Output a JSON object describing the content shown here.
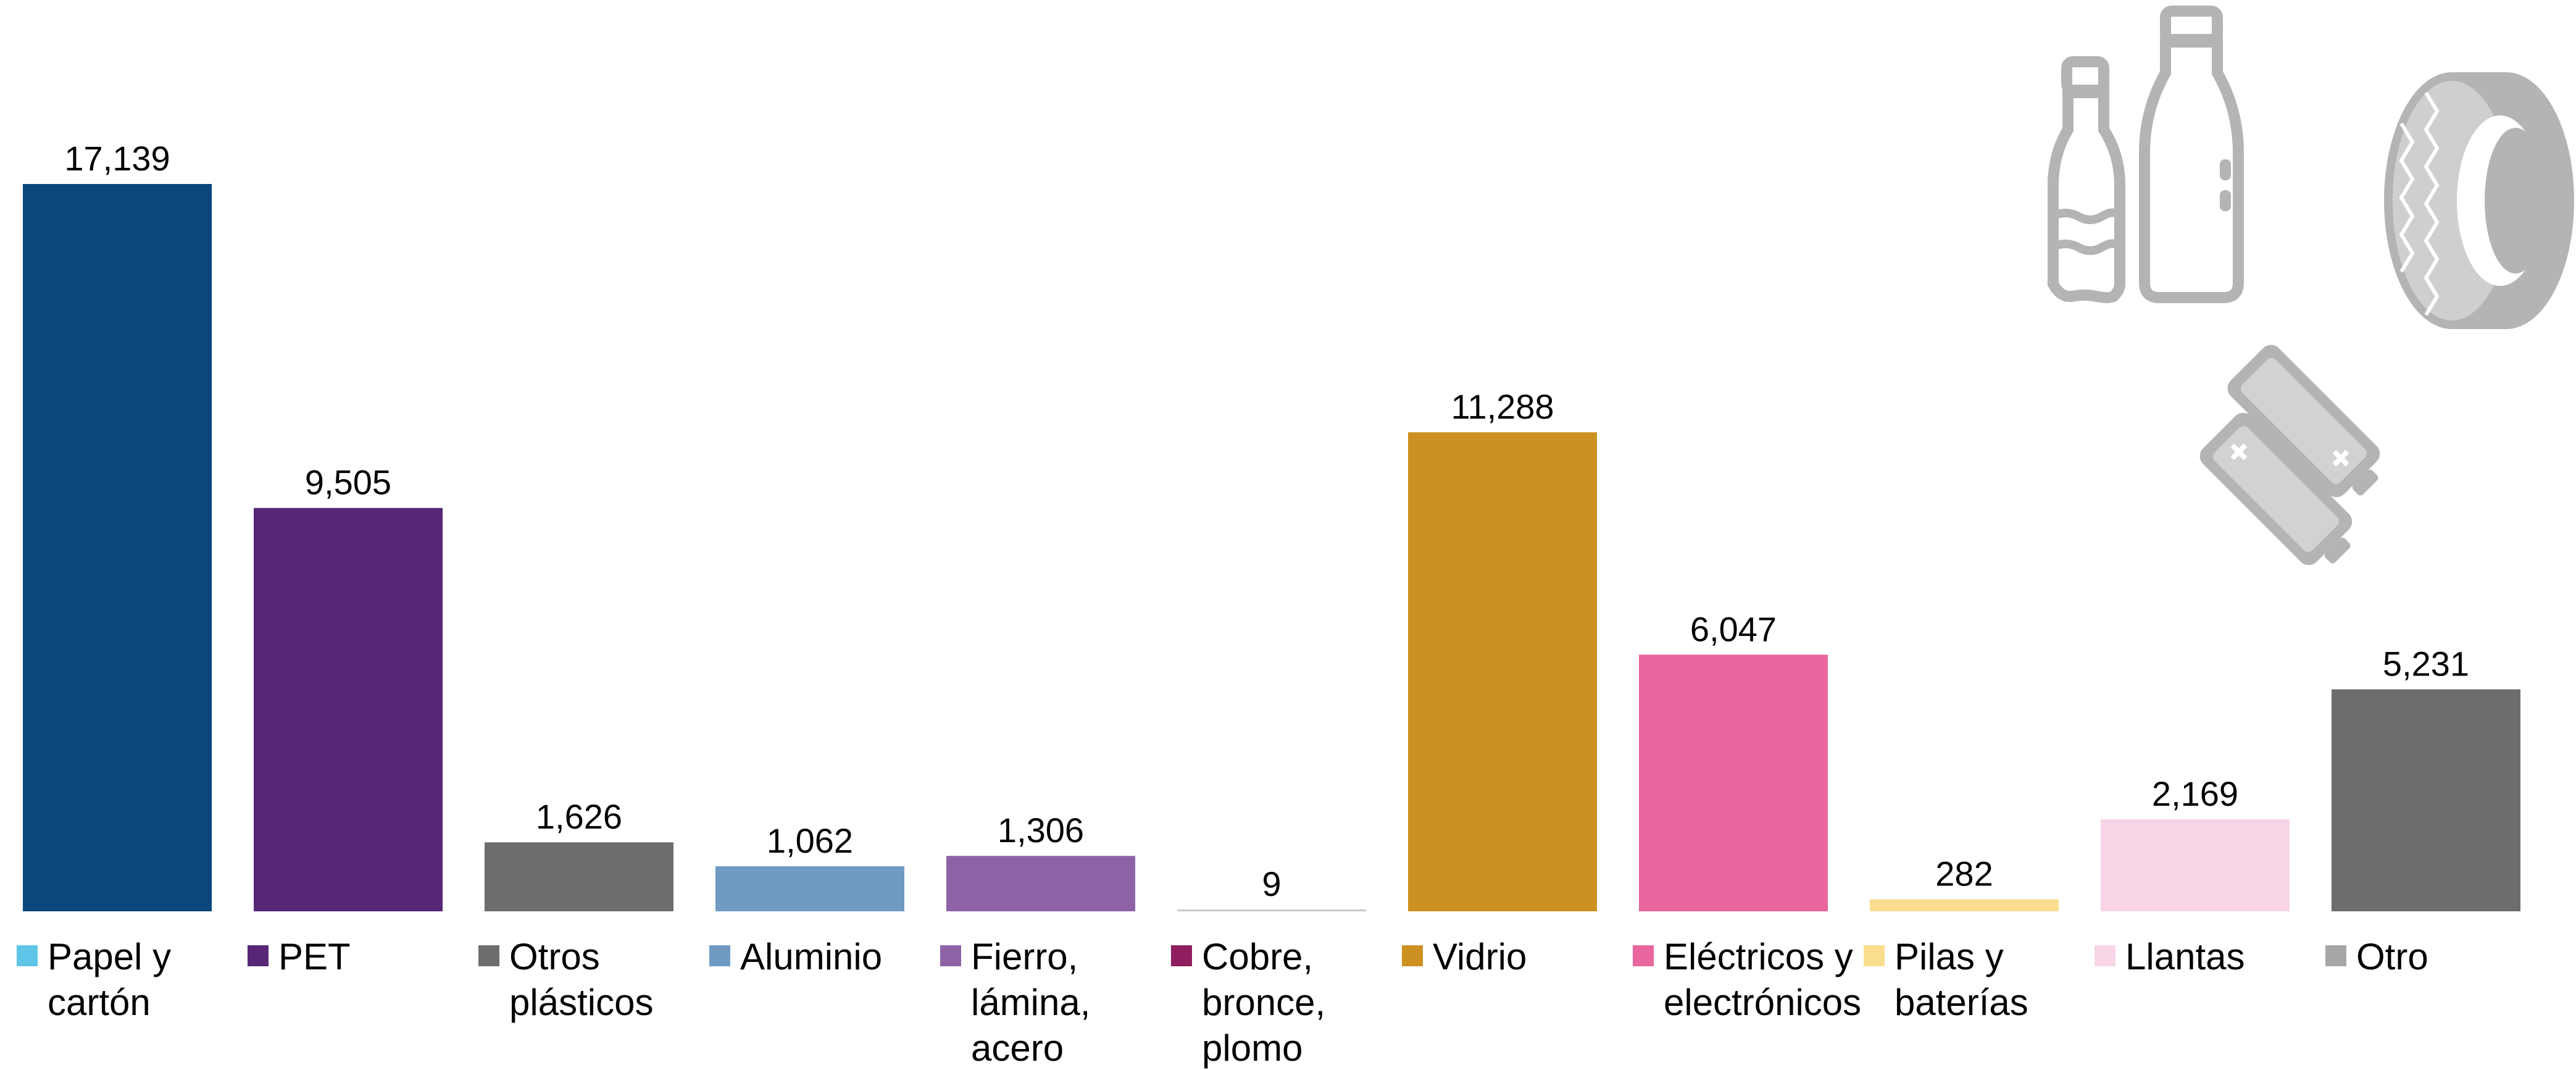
{
  "chart_data": {
    "type": "bar",
    "categories": [
      "Papel y cartón",
      "PET",
      "Otros plásticos",
      "Aluminio",
      "Fierro, lámina, acero",
      "Cobre, bronce, plomo",
      "Vidrio",
      "Eléctricos y electrónicos",
      "Pilas y baterías",
      "Llantas",
      "Otro"
    ],
    "values": [
      17139,
      9505,
      1626,
      1062,
      1306,
      9,
      11288,
      6047,
      282,
      2169,
      5231
    ],
    "value_labels": [
      "17,139",
      "9,505",
      "1,626",
      "1,062",
      "1,306",
      "9",
      "11,288",
      "6,047",
      "282",
      "2,169",
      "5,231"
    ],
    "bar_colors": [
      "#0b467d",
      "#572677",
      "#6d6d6d",
      "#6f9bc3",
      "#8e63a6",
      "#c9c9c9",
      "#cc9121",
      "#e9669e",
      "#fadd8e",
      "#f7d5e6",
      "#6d6d6d"
    ],
    "legend": [
      {
        "lines": [
          "Papel y",
          "cartón"
        ],
        "color": "#5ec4e8"
      },
      {
        "lines": [
          "PET"
        ],
        "color": "#572677"
      },
      {
        "lines": [
          "Otros",
          "plásticos"
        ],
        "color": "#6d6d6d"
      },
      {
        "lines": [
          "Aluminio"
        ],
        "color": "#6f9bc3"
      },
      {
        "lines": [
          "Fierro,",
          "lámina,",
          "acero"
        ],
        "color": "#8e63a6"
      },
      {
        "lines": [
          "Cobre,",
          "bronce,",
          "plomo"
        ],
        "color": "#8e1e5e"
      },
      {
        "lines": [
          "Vidrio"
        ],
        "color": "#cc9121"
      },
      {
        "lines": [
          "Eléctricos y",
          "electrónicos"
        ],
        "color": "#e9669e"
      },
      {
        "lines": [
          "Pilas y",
          "baterías"
        ],
        "color": "#fadd8e"
      },
      {
        "lines": [
          "Llantas"
        ],
        "color": "#f7d5e6"
      },
      {
        "lines": [
          "Otro"
        ],
        "color": "#a6a6a6"
      }
    ],
    "legend_placement": "bottom",
    "ylim": [
      0,
      17139
    ],
    "grid": false
  },
  "icons": {
    "bottles": "bottles-icon",
    "tire": "tire-icon",
    "batteries": "batteries-icon",
    "color": "#b4b4b4"
  }
}
